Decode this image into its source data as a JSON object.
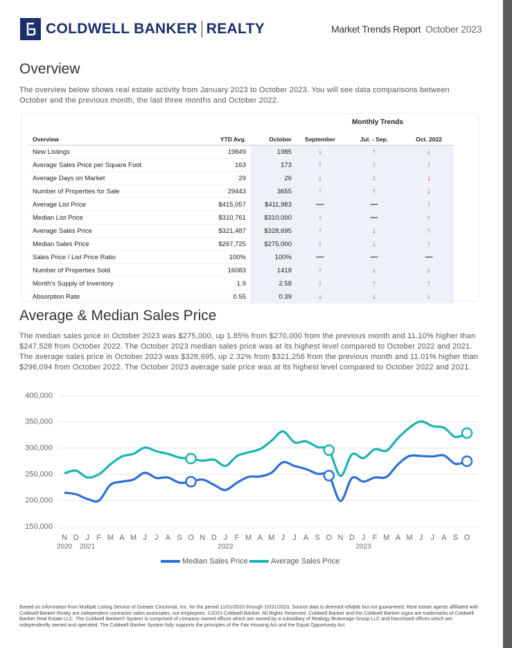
{
  "header": {
    "brand": "COLDWELL BANKER",
    "brand_sub": "REALTY",
    "report": "Market Trends Report",
    "date": "October 2023"
  },
  "overview": {
    "title": "Overview",
    "intro": "The overview below shows real estate activity from January 2023 to October 2023. You will see data comparisons between October and the previous month, the last three months and October 2022."
  },
  "table": {
    "group_header": "Monthly Trends",
    "columns": [
      "Overview",
      "YTD Avg.",
      "October",
      "September",
      "Jul. - Sep.",
      "Oct. 2022"
    ],
    "rows": [
      [
        "New Listings",
        "19849",
        "1985",
        "↓",
        "↑",
        "↓"
      ],
      [
        "Average Sales Price per Square Foot",
        "163",
        "173",
        "↑",
        "↑",
        "↑"
      ],
      [
        "Average Days on Market",
        "29",
        "26",
        "↓",
        "↓",
        "↓"
      ],
      [
        "Number of Properties for Sale",
        "29443",
        "3655",
        "↑",
        "↑",
        "↓"
      ],
      [
        "Average List Price",
        "$415,057",
        "$411,983",
        "—",
        "—",
        "↑"
      ],
      [
        "Median List Price",
        "$310,761",
        "$310,000",
        "↑",
        "—",
        "↑"
      ],
      [
        "Average Sales Price",
        "$321,487",
        "$328,695",
        "↑",
        "↓",
        "↑"
      ],
      [
        "Median Sales Price",
        "$267,725",
        "$275,000",
        "↑",
        "↓",
        "↑"
      ],
      [
        "Sales Price / List Price Ratio",
        "100%",
        "100%",
        "—",
        "—",
        "—"
      ],
      [
        "Number of Properties Sold",
        "16083",
        "1418",
        "↑",
        "↓",
        "↓"
      ],
      [
        "Month's Supply of Inventory",
        "1.9",
        "2.58",
        "↑",
        "↑",
        "↑"
      ],
      [
        "Absorption Rate",
        "0.55",
        "0.39",
        "↓",
        "↓",
        "↓"
      ]
    ]
  },
  "chart_data": {
    "type": "line",
    "title": "Average & Median Sales Price",
    "description": "The median sales price in October 2023 was $275,000, up 1.85% from $270,000 from the previous month and 11.10% higher than $247,528 from October 2022. The October 2023 median sales price was at its highest level compared to October 2022 and 2021. The average sales price in October 2023 was $328,695, up 2.32% from $321,256 from the previous month and 11.01% higher than $296,094 from October 2022. The October 2023 average sale price was at its highest level compared to October 2022 and 2021.",
    "categories": [
      "N",
      "D",
      "J",
      "F",
      "M",
      "A",
      "M",
      "J",
      "J",
      "A",
      "S",
      "O",
      "N",
      "D",
      "J",
      "F",
      "M",
      "A",
      "M",
      "J",
      "J",
      "A",
      "S",
      "O",
      "N",
      "D",
      "J",
      "F",
      "M",
      "A",
      "M",
      "J",
      "J",
      "A",
      "S",
      "O"
    ],
    "years": [
      "2020",
      null,
      "2021",
      null,
      null,
      null,
      null,
      null,
      null,
      null,
      null,
      null,
      null,
      null,
      "2022",
      null,
      null,
      null,
      null,
      null,
      null,
      null,
      null,
      null,
      null,
      null,
      "2023",
      null,
      null,
      null,
      null,
      null,
      null,
      null,
      null,
      null
    ],
    "series": [
      {
        "name": "Median Sales Price",
        "color": "#2b6fd6",
        "values": [
          215000,
          212000,
          203000,
          200000,
          230000,
          236000,
          240000,
          253000,
          243000,
          244000,
          234000,
          236000,
          240000,
          230000,
          220000,
          234000,
          245000,
          246000,
          253000,
          273000,
          266000,
          260000,
          251000,
          247528,
          199000,
          243000,
          236000,
          244000,
          245000,
          269000,
          285000,
          285000,
          284000,
          286000,
          270000,
          275000
        ]
      },
      {
        "name": "Average Sales Price",
        "color": "#19b3b1",
        "values": [
          252000,
          257000,
          244000,
          250000,
          269000,
          284000,
          289000,
          301000,
          294000,
          289000,
          282000,
          280000,
          276000,
          278000,
          266000,
          285000,
          292000,
          298000,
          314000,
          332000,
          311000,
          313000,
          302000,
          296094,
          247000,
          288000,
          281000,
          298000,
          295000,
          319000,
          339000,
          351000,
          342000,
          339000,
          321256,
          328695
        ]
      }
    ],
    "marker_indices": [
      11,
      23,
      35
    ],
    "ylim": [
      150000,
      400000
    ],
    "yticks": [
      {
        "value": 150000,
        "label": "150,000"
      },
      {
        "value": 200000,
        "label": "200,000"
      },
      {
        "value": 250000,
        "label": "250,000"
      },
      {
        "value": 300000,
        "label": "300,000"
      },
      {
        "value": 350000,
        "label": "350,000"
      },
      {
        "value": 400000,
        "label": "400,000"
      }
    ],
    "grid": true,
    "legend": "bottom"
  },
  "footer": "Based on information from Multiple Listing Service of Greater Cincinnati, Inc. for the period 11/01/2020 through 10/31/2023. Source data is deemed reliable but not guaranteed. Real estate agents affiliated with Coldwell Banker Realty are independent contractor sales associates, not employees. ©2023 Coldwell Banker. All Rights Reserved. Coldwell Banker and the Coldwell Banker logos are trademarks of Coldwell Banker Real Estate LLC. The Coldwell Banker® System is comprised of company owned offices which are owned by a subsidiary of Realogy Brokerage Group LLC and franchised offices which are independently owned and operated. The Coldwell Banker System fully supports the principles of the Fair Housing Act and the Equal Opportunity Act."
}
